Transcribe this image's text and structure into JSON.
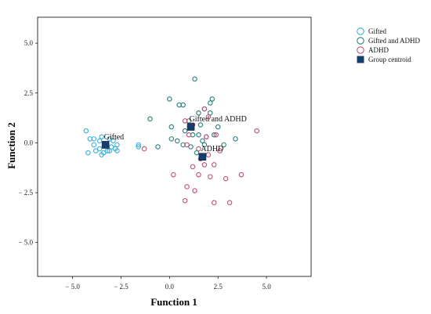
{
  "chart_data": {
    "type": "scatter",
    "title": "",
    "xlabel": "Function 1",
    "ylabel": "Function 2",
    "xlim": [
      -6.8,
      7.3
    ],
    "ylim": [
      -6.7,
      6.3
    ],
    "xticks": [
      -5.0,
      -2.5,
      0.0,
      2.5,
      5.0
    ],
    "yticks": [
      -5.0,
      -2.5,
      0.0,
      2.5,
      5.0
    ],
    "xtick_labels": [
      "− 5.0",
      "− 2.5",
      "0.0",
      "2.5",
      "5.0"
    ],
    "ytick_labels": [
      "− 5.0",
      "− 2.5",
      "0.0",
      "2.5",
      "5.0"
    ],
    "grid": false,
    "legend_position": "outside-right-top",
    "series": [
      {
        "name": "Gifted",
        "color": "#3aaedc",
        "marker": "open-circle",
        "points": [
          [
            -4.3,
            0.6
          ],
          [
            -4.1,
            0.2
          ],
          [
            -3.9,
            -0.1
          ],
          [
            -3.6,
            -0.3
          ],
          [
            -3.4,
            -0.5
          ],
          [
            -3.2,
            -0.4
          ],
          [
            -3.0,
            -0.2
          ],
          [
            -2.8,
            -0.3
          ],
          [
            -2.7,
            -0.1
          ],
          [
            -2.9,
            0.1
          ],
          [
            -3.1,
            0.2
          ],
          [
            -3.5,
            0.3
          ],
          [
            -3.8,
            -0.4
          ],
          [
            -4.2,
            -0.5
          ],
          [
            -3.3,
            -0.1
          ],
          [
            -2.7,
            -0.4
          ],
          [
            -3.6,
            0.1
          ],
          [
            -3.9,
            0.2
          ],
          [
            -3.5,
            -0.6
          ],
          [
            -3.1,
            -0.4
          ],
          [
            -1.6,
            -0.2
          ],
          [
            -1.6,
            -0.1
          ]
        ]
      },
      {
        "name": "Gifted and ADHD",
        "color": "#2a7f7f",
        "marker": "open-circle",
        "points": [
          [
            1.3,
            3.2
          ],
          [
            0.0,
            2.2
          ],
          [
            0.5,
            1.9
          ],
          [
            0.7,
            1.9
          ],
          [
            2.2,
            2.2
          ],
          [
            2.1,
            2.0
          ],
          [
            1.8,
            1.7
          ],
          [
            1.5,
            1.5
          ],
          [
            2.1,
            1.5
          ],
          [
            -1.0,
            1.2
          ],
          [
            1.0,
            1.1
          ],
          [
            0.1,
            0.8
          ],
          [
            1.6,
            0.9
          ],
          [
            2.5,
            0.8
          ],
          [
            0.8,
            0.6
          ],
          [
            1.2,
            0.4
          ],
          [
            1.9,
            0.3
          ],
          [
            1.7,
            0.1
          ],
          [
            0.1,
            0.2
          ],
          [
            0.4,
            0.1
          ],
          [
            0.7,
            -0.1
          ],
          [
            1.1,
            -0.2
          ],
          [
            1.8,
            -0.1
          ],
          [
            1.5,
            0.4
          ],
          [
            3.4,
            0.2
          ],
          [
            2.8,
            -0.1
          ],
          [
            -0.6,
            -0.2
          ],
          [
            1.4,
            -0.5
          ],
          [
            2.3,
            0.4
          ]
        ]
      },
      {
        "name": "ADHD",
        "color": "#c2507a",
        "marker": "open-circle",
        "points": [
          [
            4.5,
            0.6
          ],
          [
            1.8,
            1.7
          ],
          [
            2.0,
            1.3
          ],
          [
            0.8,
            1.1
          ],
          [
            1.2,
            0.9
          ],
          [
            1.9,
            0.3
          ],
          [
            2.4,
            0.4
          ],
          [
            1.0,
            0.4
          ],
          [
            0.9,
            -0.1
          ],
          [
            2.6,
            -0.4
          ],
          [
            1.6,
            -0.8
          ],
          [
            1.8,
            -1.1
          ],
          [
            2.3,
            -1.1
          ],
          [
            1.2,
            -1.2
          ],
          [
            0.2,
            -1.6
          ],
          [
            1.5,
            -1.6
          ],
          [
            2.1,
            -1.7
          ],
          [
            2.9,
            -1.8
          ],
          [
            3.7,
            -1.6
          ],
          [
            0.9,
            -2.2
          ],
          [
            1.3,
            -2.4
          ],
          [
            0.8,
            -2.9
          ],
          [
            2.3,
            -3.0
          ],
          [
            3.1,
            -3.0
          ],
          [
            -1.3,
            -0.3
          ],
          [
            1.5,
            -0.3
          ],
          [
            2.0,
            -0.6
          ]
        ]
      }
    ],
    "centroids": {
      "name": "Group centroid",
      "color": "#173d6e",
      "marker": "filled-square",
      "points": [
        {
          "label": "Gifted",
          "x": -3.3,
          "y": -0.1
        },
        {
          "label": "Gifted and ADHD",
          "x": 1.1,
          "y": 0.8
        },
        {
          "label": "ADHD",
          "x": 1.7,
          "y": -0.7
        }
      ]
    }
  }
}
